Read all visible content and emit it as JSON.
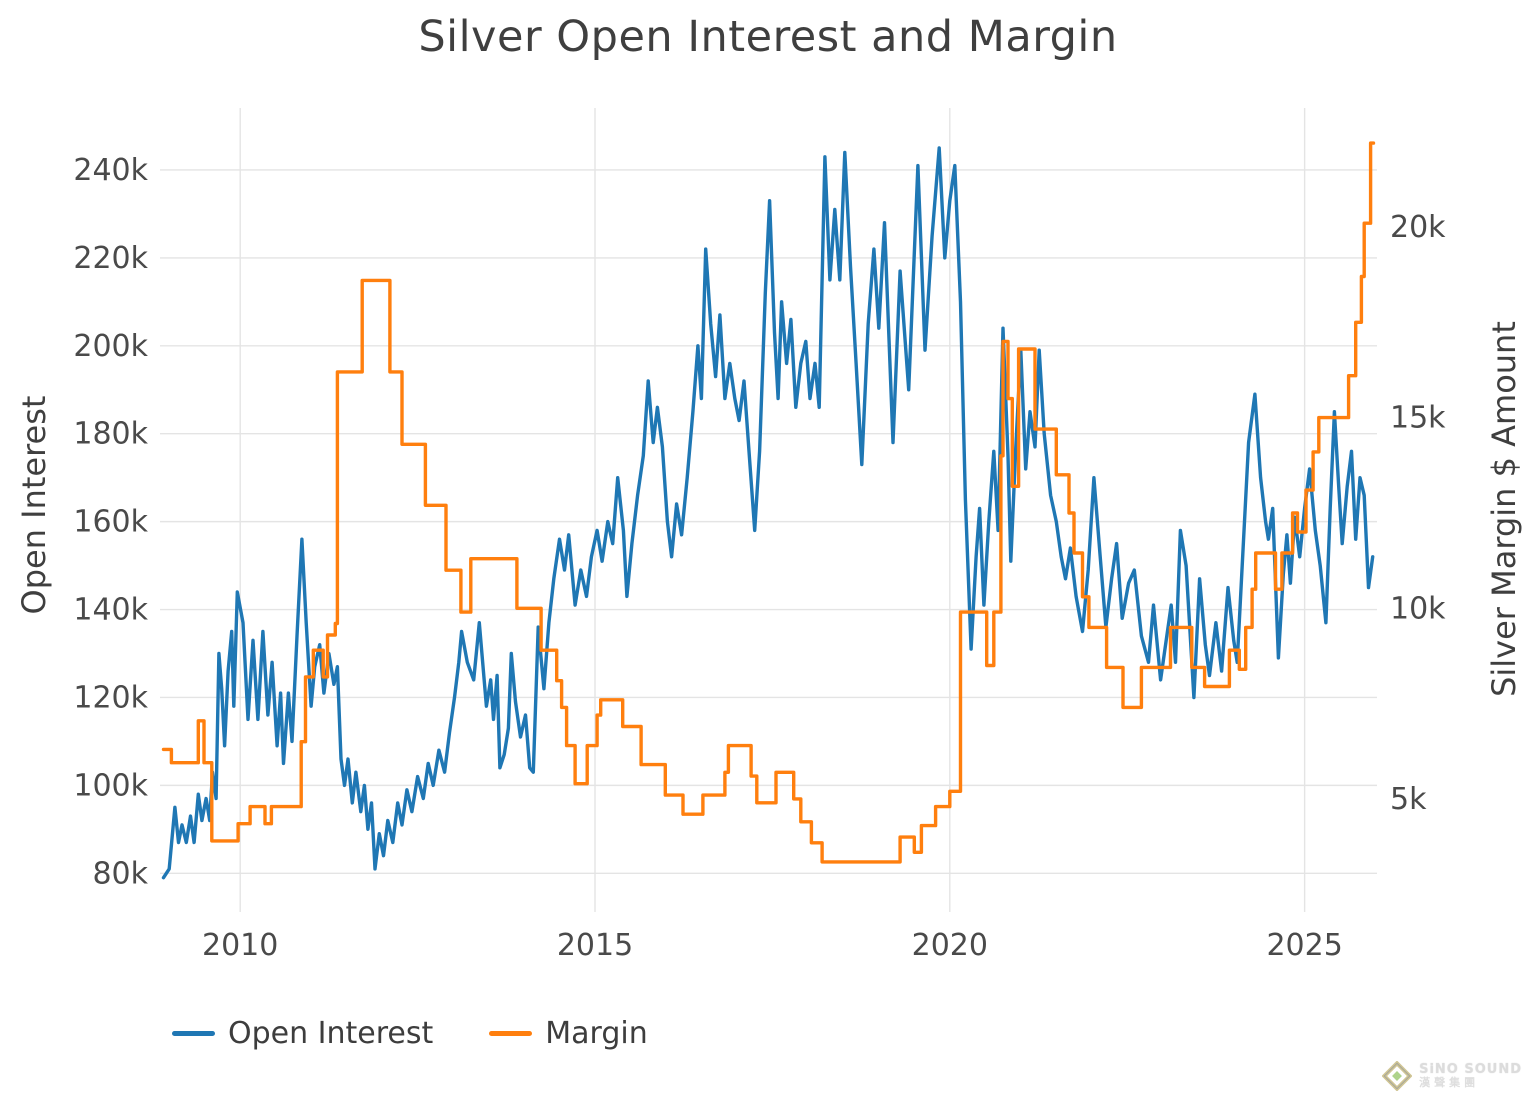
{
  "header": {
    "title": "Silver Open Interest and Margin"
  },
  "colors": {
    "background": "#ffffff",
    "grid": "#e4e4e4",
    "title_text": "#3f3f3f",
    "tick_text": "#4a4a4a",
    "open_interest_line": "#1f77b4",
    "margin_line": "#ff7f0e"
  },
  "legend": {
    "items": [
      {
        "label": "Open Interest",
        "color": "#1f77b4"
      },
      {
        "label": "Margin",
        "color": "#ff7f0e"
      }
    ]
  },
  "logo": {
    "brand": "SiNO SOUND",
    "cn": "漢聲集團",
    "icon": "diamond-gem-icon"
  },
  "chart_data": {
    "type": "line",
    "title": "Silver Open Interest and Margin",
    "xlabel": "",
    "grid": true,
    "legend_position": "bottom-left",
    "xlim": [
      2008.87,
      2026.02
    ],
    "x_ticks": [
      2010,
      2015,
      2020,
      2025
    ],
    "x_tick_labels": [
      "2010",
      "2015",
      "2020",
      "2025"
    ],
    "left_axis": {
      "label": "Open Interest",
      "units": "contracts (thousands)",
      "ylim": [
        72.1,
        254.1
      ],
      "ticks": [
        240,
        220,
        200,
        180,
        160,
        140,
        120,
        100,
        80
      ],
      "tick_labels": [
        "240k",
        "220k",
        "200k",
        "180k",
        "160k",
        "140k",
        "120k",
        "100k",
        "80k"
      ]
    },
    "right_axis": {
      "label": "Silver Margin $ Amount",
      "units": "$ (thousands)",
      "ylim": [
        2.14,
        23.12
      ],
      "ticks": [
        20,
        15,
        10,
        5
      ],
      "tick_labels": [
        "20k",
        "15k",
        "10k",
        "5k"
      ]
    },
    "series": [
      {
        "name": "Open Interest",
        "axis": "left",
        "color": "#1f77b4",
        "style": "line",
        "x": [
          2008.92,
          2009.0,
          2009.08,
          2009.13,
          2009.18,
          2009.24,
          2009.3,
          2009.35,
          2009.41,
          2009.46,
          2009.52,
          2009.57,
          2009.61,
          2009.66,
          2009.7,
          2009.74,
          2009.78,
          2009.83,
          2009.88,
          2009.91,
          2009.96,
          2010.04,
          2010.11,
          2010.18,
          2010.25,
          2010.32,
          2010.39,
          2010.45,
          2010.52,
          2010.57,
          2010.61,
          2010.68,
          2010.73,
          2010.8,
          2010.87,
          2010.93,
          2011.0,
          2011.05,
          2011.12,
          2011.18,
          2011.25,
          2011.32,
          2011.37,
          2011.42,
          2011.47,
          2011.52,
          2011.58,
          2011.63,
          2011.7,
          2011.75,
          2011.8,
          2011.85,
          2011.9,
          2011.96,
          2012.02,
          2012.08,
          2012.15,
          2012.22,
          2012.28,
          2012.35,
          2012.42,
          2012.5,
          2012.58,
          2012.65,
          2012.72,
          2012.8,
          2012.88,
          2012.95,
          2013.02,
          2013.08,
          2013.12,
          2013.2,
          2013.29,
          2013.37,
          2013.47,
          2013.53,
          2013.57,
          2013.62,
          2013.66,
          2013.72,
          2013.78,
          2013.82,
          2013.88,
          2013.95,
          2014.02,
          2014.08,
          2014.13,
          2014.2,
          2014.28,
          2014.35,
          2014.42,
          2014.5,
          2014.57,
          2014.63,
          2014.72,
          2014.8,
          2014.88,
          2014.95,
          2015.03,
          2015.1,
          2015.18,
          2015.25,
          2015.32,
          2015.4,
          2015.45,
          2015.52,
          2015.6,
          2015.68,
          2015.75,
          2015.82,
          2015.88,
          2015.95,
          2016.02,
          2016.08,
          2016.15,
          2016.22,
          2016.3,
          2016.38,
          2016.45,
          2016.5,
          2016.56,
          2016.63,
          2016.7,
          2016.76,
          2016.83,
          2016.9,
          2016.97,
          2017.03,
          2017.1,
          2017.17,
          2017.25,
          2017.32,
          2017.4,
          2017.46,
          2017.53,
          2017.58,
          2017.63,
          2017.7,
          2017.76,
          2017.83,
          2017.9,
          2017.97,
          2018.03,
          2018.1,
          2018.16,
          2018.24,
          2018.31,
          2018.38,
          2018.45,
          2018.52,
          2018.6,
          2018.68,
          2018.76,
          2018.85,
          2018.93,
          2019.0,
          2019.08,
          2019.2,
          2019.3,
          2019.42,
          2019.55,
          2019.65,
          2019.75,
          2019.85,
          2019.93,
          2020.0,
          2020.07,
          2020.15,
          2020.22,
          2020.3,
          2020.37,
          2020.42,
          2020.48,
          2020.55,
          2020.62,
          2020.68,
          2020.75,
          2020.82,
          2020.86,
          2020.93,
          2021.0,
          2021.07,
          2021.13,
          2021.2,
          2021.26,
          2021.33,
          2021.42,
          2021.5,
          2021.57,
          2021.63,
          2021.7,
          2021.78,
          2021.87,
          2021.95,
          2022.03,
          2022.12,
          2022.2,
          2022.28,
          2022.35,
          2022.43,
          2022.52,
          2022.6,
          2022.7,
          2022.8,
          2022.87,
          2022.97,
          2023.05,
          2023.12,
          2023.18,
          2023.25,
          2023.33,
          2023.44,
          2023.52,
          2023.6,
          2023.66,
          2023.75,
          2023.83,
          2023.92,
          2024.0,
          2024.05,
          2024.12,
          2024.21,
          2024.3,
          2024.38,
          2024.45,
          2024.49,
          2024.55,
          2024.63,
          2024.7,
          2024.75,
          2024.8,
          2024.86,
          2024.93,
          2025.0,
          2025.07,
          2025.15,
          2025.22,
          2025.3,
          2025.36,
          2025.42,
          2025.48,
          2025.53,
          2025.6,
          2025.66,
          2025.72,
          2025.78,
          2025.84,
          2025.9,
          2025.96
        ],
        "y": [
          79,
          81,
          95,
          87,
          91,
          87,
          93,
          87,
          98,
          92,
          97,
          92,
          103,
          97,
          130,
          122,
          109,
          126,
          135,
          118,
          144,
          137,
          115,
          133,
          115,
          135,
          116,
          128,
          109,
          121,
          105,
          121,
          110,
          134,
          156,
          137,
          118,
          127,
          132,
          121,
          130,
          123,
          127,
          106,
          100,
          106,
          96,
          103,
          94,
          100,
          90,
          96,
          81,
          89,
          84,
          92,
          87,
          96,
          91,
          99,
          94,
          102,
          97,
          105,
          100,
          108,
          103,
          112,
          120,
          128,
          135,
          128,
          124,
          137,
          118,
          124,
          115,
          125,
          104,
          107,
          113,
          130,
          119,
          111,
          116,
          104,
          103,
          136,
          122,
          137,
          147,
          156,
          149,
          157,
          141,
          149,
          143,
          152,
          158,
          151,
          160,
          155,
          170,
          158,
          143,
          155,
          166,
          175,
          192,
          178,
          186,
          177,
          160,
          152,
          164,
          157,
          170,
          185,
          200,
          188,
          222,
          205,
          193,
          207,
          188,
          196,
          188,
          183,
          192,
          176,
          158,
          176,
          212,
          233,
          203,
          188,
          210,
          196,
          206,
          186,
          196,
          201,
          188,
          196,
          186,
          243,
          215,
          231,
          215,
          244,
          218,
          196,
          173,
          205,
          222,
          204,
          228,
          178,
          217,
          190,
          241,
          199,
          225,
          245,
          220,
          233,
          241,
          210,
          165,
          131,
          152,
          163,
          141,
          160,
          176,
          158,
          204,
          175,
          151,
          177,
          199,
          172,
          185,
          177,
          199,
          180,
          166,
          160,
          152,
          147,
          154,
          143,
          135,
          149,
          170,
          152,
          136,
          147,
          155,
          138,
          146,
          149,
          134,
          128,
          141,
          124,
          133,
          141,
          128,
          158,
          150,
          120,
          147,
          132,
          125,
          137,
          126,
          145,
          133,
          128,
          150,
          178,
          189,
          170,
          160,
          156,
          163,
          129,
          148,
          157,
          146,
          161,
          152,
          163,
          172,
          158,
          150,
          137,
          163,
          185,
          168,
          155,
          168,
          176,
          156,
          170,
          166,
          145,
          152
        ],
        "unit": "k"
      },
      {
        "name": "Margin",
        "axis": "right",
        "color": "#ff7f0e",
        "style": "step",
        "x_end": 2025.97,
        "x": [
          2008.92,
          2009.03,
          2009.41,
          2009.49,
          2009.6,
          2009.97,
          2010.14,
          2010.35,
          2010.44,
          2010.86,
          2010.92,
          2011.03,
          2011.17,
          2011.23,
          2011.34,
          2011.37,
          2011.72,
          2012.11,
          2012.28,
          2012.61,
          2012.9,
          2013.11,
          2013.25,
          2013.9,
          2014.24,
          2014.46,
          2014.53,
          2014.6,
          2014.72,
          2014.89,
          2015.03,
          2015.08,
          2015.39,
          2015.65,
          2015.99,
          2016.24,
          2016.52,
          2016.83,
          2016.88,
          2017.2,
          2017.28,
          2017.55,
          2017.8,
          2017.9,
          2018.05,
          2018.2,
          2019.3,
          2019.5,
          2019.6,
          2019.8,
          2020.0,
          2020.15,
          2020.52,
          2020.62,
          2020.72,
          2020.75,
          2020.82,
          2020.88,
          2020.97,
          2021.2,
          2021.5,
          2021.68,
          2021.75,
          2021.87,
          2021.96,
          2022.21,
          2022.44,
          2022.7,
          2023.11,
          2023.41,
          2023.59,
          2023.94,
          2024.08,
          2024.17,
          2024.26,
          2024.31,
          2024.59,
          2024.68,
          2024.83,
          2024.9,
          2025.02,
          2025.12,
          2025.2,
          2025.62,
          2025.72,
          2025.8,
          2025.84,
          2025.93
        ],
        "y": [
          6.3,
          5.95,
          7.05,
          5.95,
          3.9,
          4.35,
          4.8,
          4.35,
          4.8,
          6.5,
          8.2,
          8.9,
          8.2,
          9.3,
          9.6,
          16.2,
          18.6,
          16.2,
          14.3,
          12.7,
          11.0,
          9.9,
          11.3,
          10.0,
          8.9,
          8.1,
          7.4,
          6.4,
          5.4,
          6.4,
          7.2,
          7.6,
          6.9,
          5.9,
          5.1,
          4.6,
          5.1,
          5.7,
          6.4,
          5.6,
          4.9,
          5.7,
          5.0,
          4.4,
          3.85,
          3.35,
          4.0,
          3.6,
          4.3,
          4.8,
          5.2,
          9.9,
          8.5,
          9.9,
          14.0,
          17.0,
          15.5,
          13.2,
          16.8,
          14.7,
          13.5,
          12.5,
          11.45,
          10.3,
          9.5,
          8.45,
          7.4,
          8.45,
          9.5,
          8.45,
          7.95,
          8.9,
          8.4,
          9.5,
          10.5,
          11.45,
          10.5,
          11.45,
          12.5,
          12.0,
          13.1,
          14.1,
          15.0,
          16.1,
          17.5,
          18.7,
          20.1,
          22.2
        ],
        "unit": "k"
      }
    ]
  }
}
